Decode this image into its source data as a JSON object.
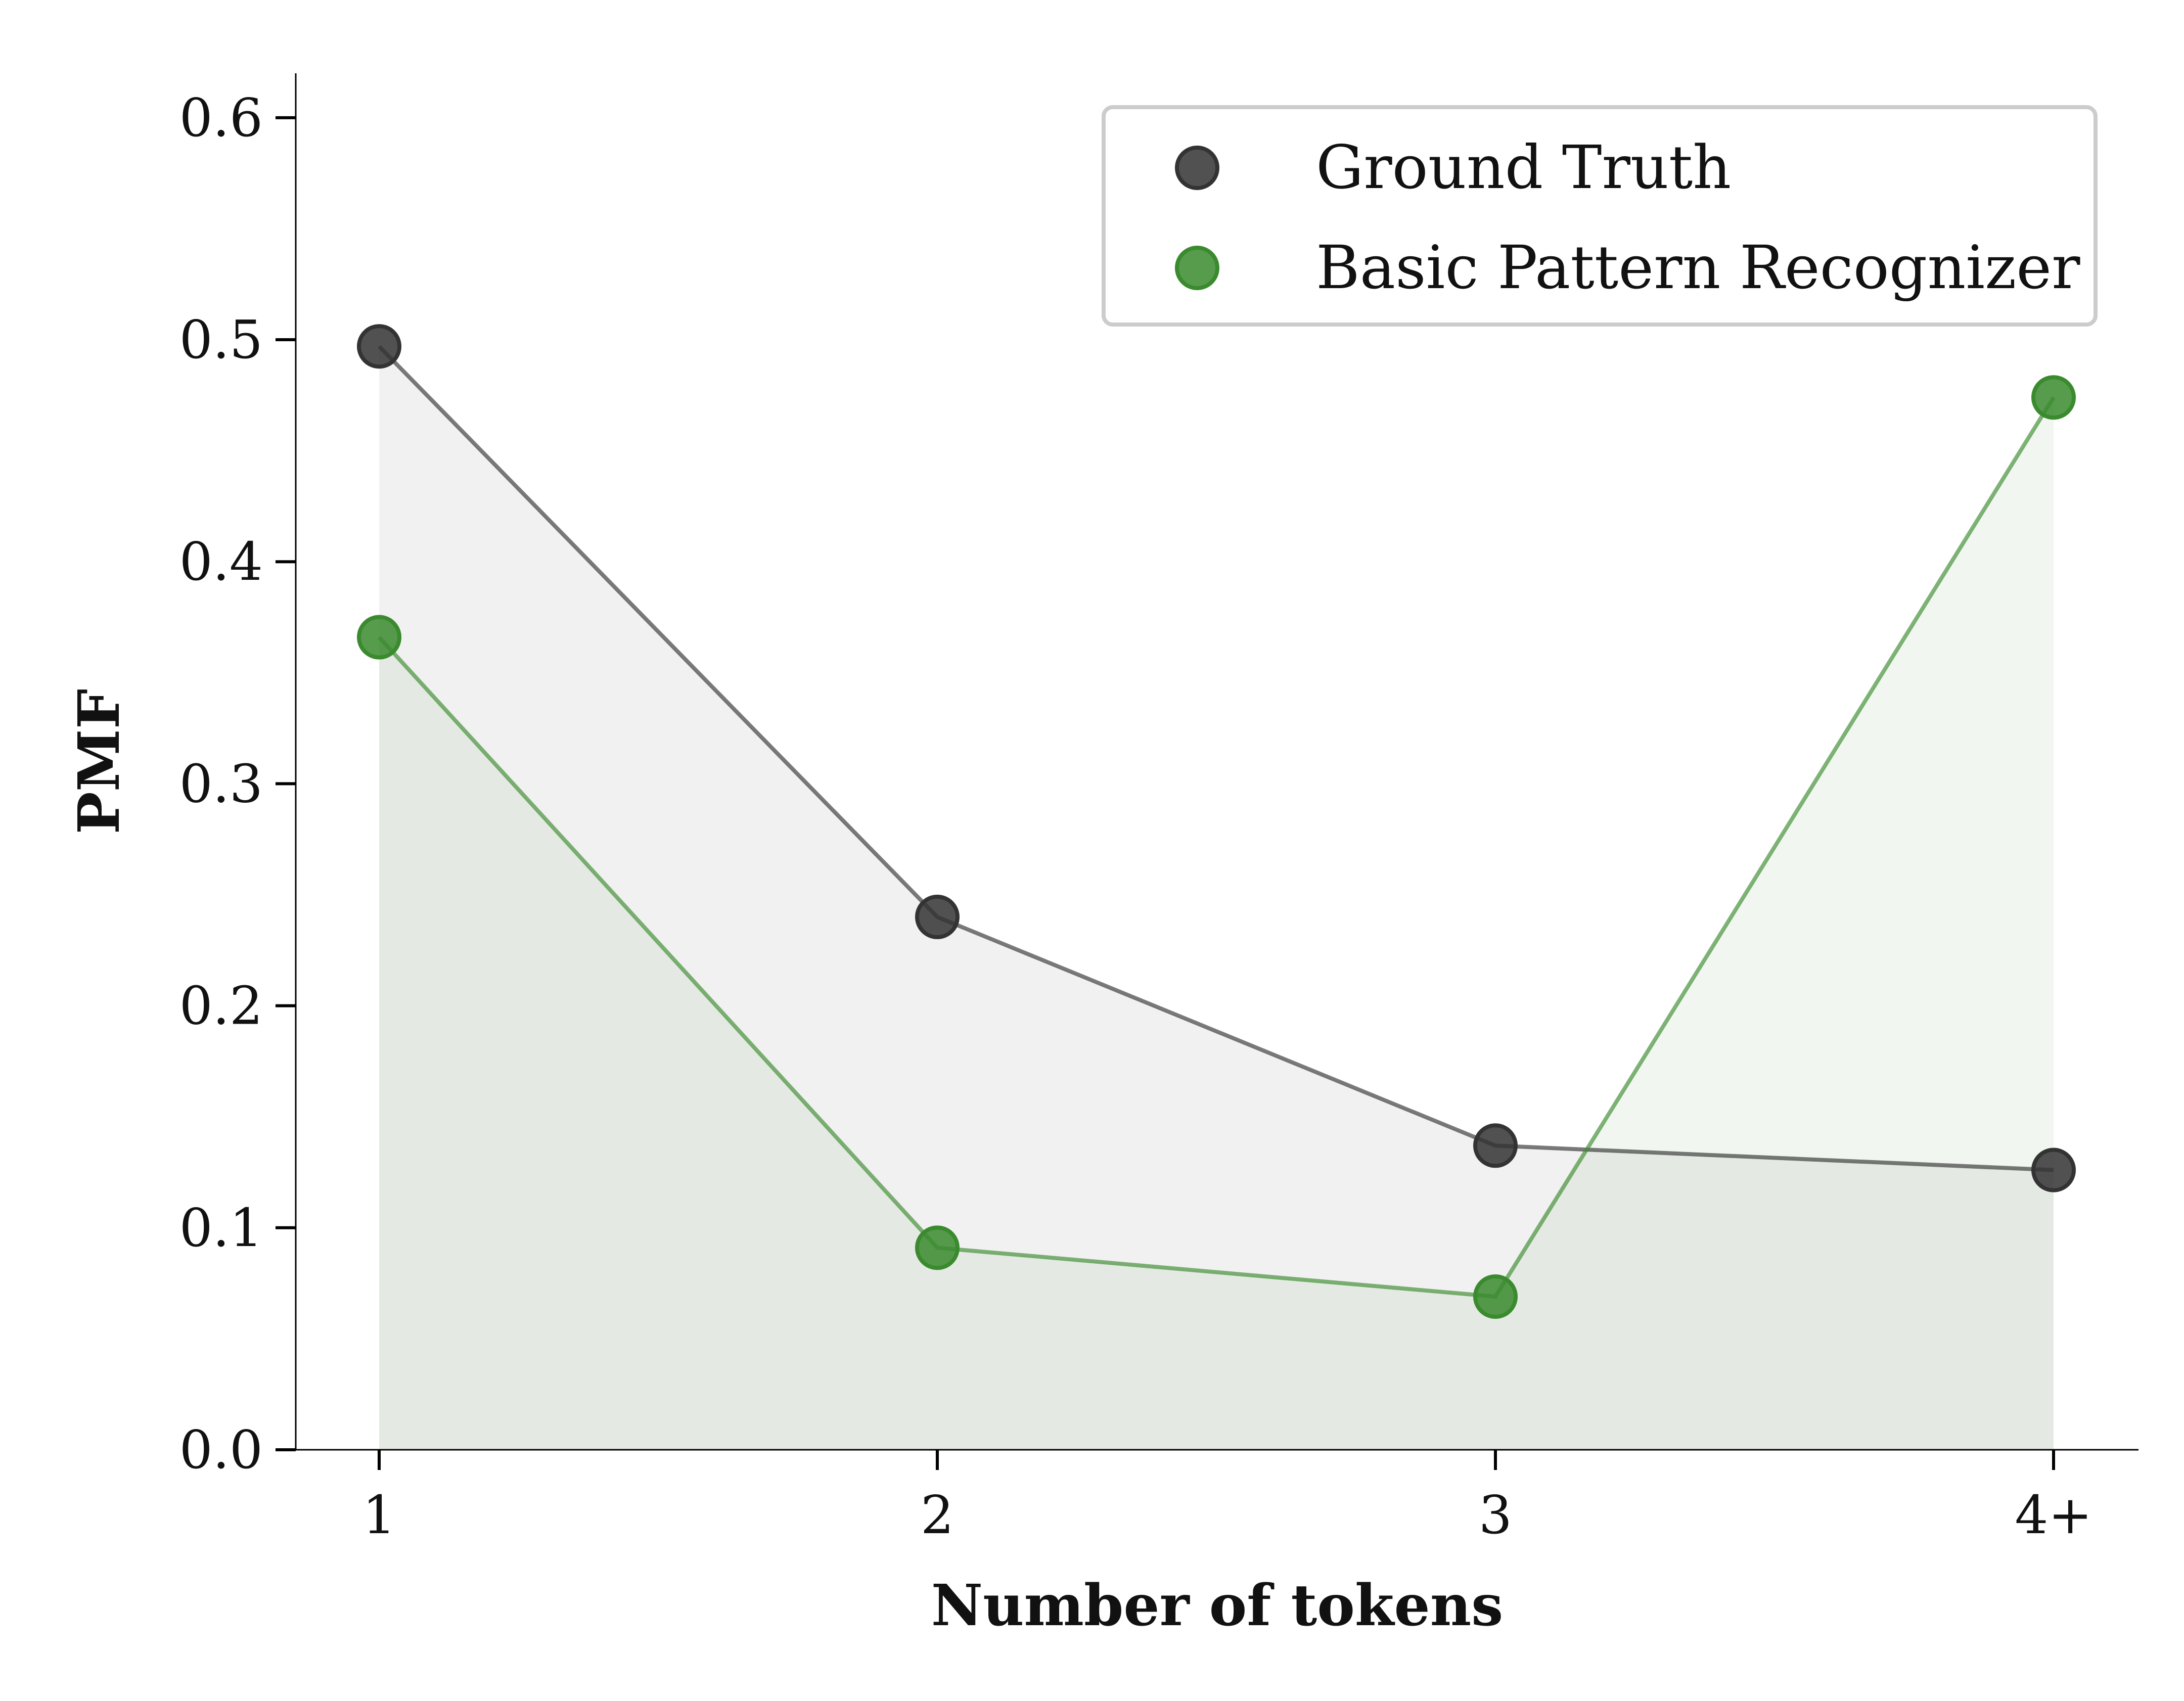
{
  "chart_data": {
    "type": "line",
    "xlabel": "Number of tokens",
    "ylabel": "PMF",
    "categories": [
      "1",
      "2",
      "3",
      "4+"
    ],
    "ylim": [
      0,
      0.62
    ],
    "yticks": [
      "0.0",
      "0.1",
      "0.2",
      "0.3",
      "0.4",
      "0.5",
      "0.6"
    ],
    "grid": false,
    "legend_position": "top-right",
    "series": [
      {
        "name": "Ground Truth",
        "color": "#333333",
        "values": [
          0.497,
          0.24,
          0.137,
          0.126
        ]
      },
      {
        "name": "Basic Pattern Recognizer",
        "color": "#3a8a2e",
        "values": [
          0.366,
          0.091,
          0.069,
          0.474
        ]
      }
    ]
  }
}
